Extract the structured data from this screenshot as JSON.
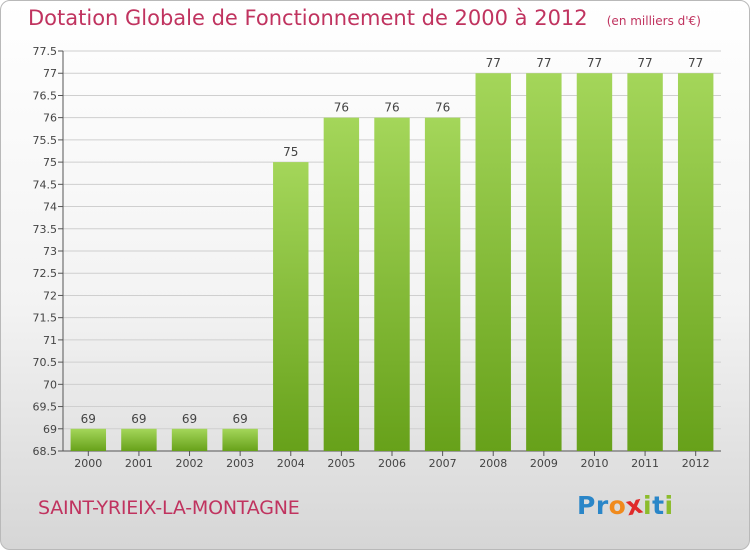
{
  "header": {
    "title": "Dotation Globale de Fonctionnement de 2000 à 2012",
    "unit": "(en milliers d'€)"
  },
  "footer": {
    "commune": "SAINT-YRIEIX-LA-MONTAGNE",
    "logo_letters": [
      "P",
      "r",
      "o",
      "x",
      "i",
      "t",
      "i"
    ],
    "logo_colors": [
      "#2a86c8",
      "#2a86c8",
      "#f08a1c",
      "#e02a2a",
      "#8cbc2c",
      "#2a86c8",
      "#8cbc2c"
    ]
  },
  "colors": {
    "bar_top": "#a4d65a",
    "bar_bottom": "#67a11a",
    "text": "#c0335f",
    "grid": "#cfcfcf"
  },
  "chart_data": {
    "type": "bar",
    "title": "Dotation Globale de Fonctionnement de 2000 à 2012",
    "subtitle": "(en milliers d'€)",
    "xlabel": "",
    "ylabel": "",
    "categories": [
      "2000",
      "2001",
      "2002",
      "2003",
      "2004",
      "2005",
      "2006",
      "2007",
      "2008",
      "2009",
      "2010",
      "2011",
      "2012"
    ],
    "values": [
      69,
      69,
      69,
      69,
      75,
      76,
      76,
      76,
      77,
      77,
      77,
      77,
      77
    ],
    "data_labels": [
      "69",
      "69",
      "69",
      "69",
      "75",
      "76",
      "76",
      "76",
      "77",
      "77",
      "77",
      "77",
      "77"
    ],
    "ylim": [
      68.5,
      77.5
    ],
    "yticks": [
      "68.5",
      "69",
      "69.5",
      "70",
      "70.5",
      "71",
      "71.5",
      "72",
      "72.5",
      "73",
      "73.5",
      "74",
      "74.5",
      "75",
      "75.5",
      "76",
      "76.5",
      "77",
      "77.5"
    ],
    "grid": true
  }
}
